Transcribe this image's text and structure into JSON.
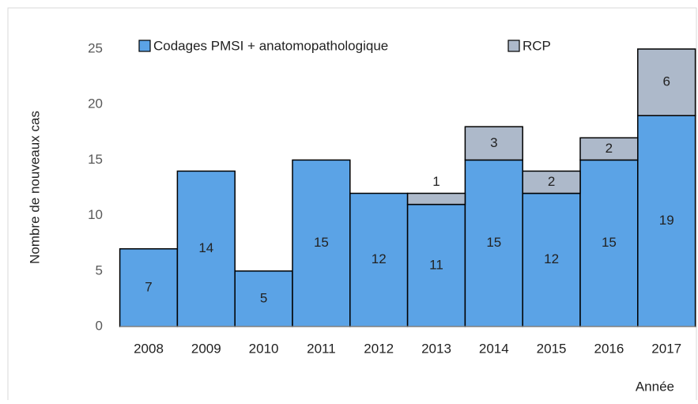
{
  "chart_data": {
    "type": "stacked_bar",
    "categories": [
      "2008",
      "2009",
      "2010",
      "2011",
      "2012",
      "2013",
      "2014",
      "2015",
      "2016",
      "2017"
    ],
    "series": [
      {
        "name": "Codages PMSI + anatomopathologique",
        "color": "#5ba3e6",
        "values": [
          7,
          14,
          5,
          15,
          12,
          11,
          15,
          12,
          15,
          19
        ]
      },
      {
        "name": "RCP",
        "color": "#adb9ca",
        "values": [
          null,
          null,
          null,
          null,
          null,
          1,
          3,
          2,
          2,
          6
        ]
      }
    ],
    "ylim": [
      0,
      25
    ],
    "yticks": [
      0,
      5,
      10,
      15,
      20,
      25
    ],
    "y_label": "Nombre de nouveaux cas",
    "x_label": "Année",
    "grid": false
  }
}
